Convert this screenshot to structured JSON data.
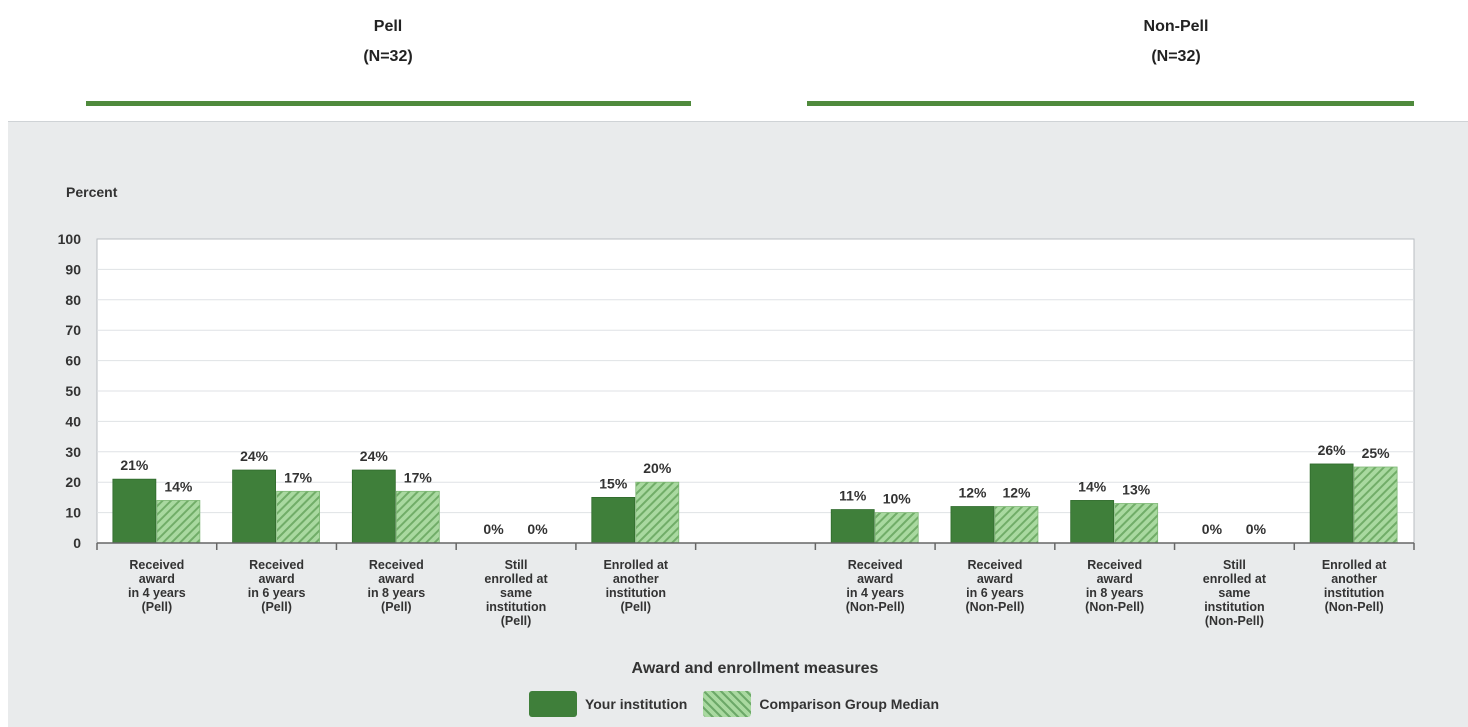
{
  "groups": [
    {
      "title": "Pell",
      "n": "(N=32)"
    },
    {
      "title": "Non-Pell",
      "n": "(N=32)"
    }
  ],
  "colors": {
    "your_institution": "#3f7f3a",
    "comparison_median": "#a9d9a0",
    "group_rule": "#4f8a3c",
    "panel_background": "#e9ebec"
  },
  "legend": {
    "your_institution": "Your institution",
    "comparison_median": "Comparison Group Median"
  },
  "chart_data": {
    "type": "bar",
    "ylabel": "Percent",
    "xlabel": "Award and enrollment measures",
    "ylim": [
      0,
      100
    ],
    "yticks": [
      0,
      10,
      20,
      30,
      40,
      50,
      60,
      70,
      80,
      90,
      100
    ],
    "grid": true,
    "legend_position": "bottom",
    "categories": [
      [
        "Received",
        "award",
        "in 4 years",
        "(Pell)"
      ],
      [
        "Received",
        "award",
        "in 6 years",
        "(Pell)"
      ],
      [
        "Received",
        "award",
        "in 8 years",
        "(Pell)"
      ],
      [
        "Still",
        "enrolled at",
        "same",
        "institution",
        "(Pell)"
      ],
      [
        "Enrolled at",
        "another",
        "institution",
        "(Pell)"
      ],
      [],
      [
        "Received",
        "award",
        "in 4 years",
        "(Non-Pell)"
      ],
      [
        "Received",
        "award",
        "in 6 years",
        "(Non-Pell)"
      ],
      [
        "Received",
        "award",
        "in 8 years",
        "(Non-Pell)"
      ],
      [
        "Still",
        "enrolled at",
        "same",
        "institution",
        "(Non-Pell)"
      ],
      [
        "Enrolled at",
        "another",
        "institution",
        "(Non-Pell)"
      ]
    ],
    "series": [
      {
        "name": "Your institution",
        "values": [
          21,
          24,
          24,
          0,
          15,
          null,
          11,
          12,
          14,
          0,
          26
        ]
      },
      {
        "name": "Comparison Group Median",
        "values": [
          14,
          17,
          17,
          0,
          20,
          null,
          10,
          12,
          13,
          0,
          25
        ]
      }
    ]
  }
}
